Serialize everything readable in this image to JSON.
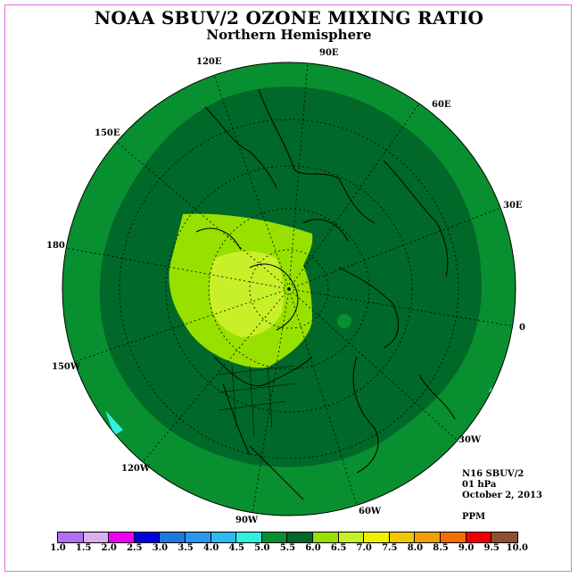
{
  "title": "NOAA SBUV/2 OZONE MIXING RATIO",
  "subtitle": "Northern Hemisphere",
  "longitude_labels": [
    "90E",
    "60E",
    "30E",
    "0",
    "30W",
    "60W",
    "90W",
    "120W",
    "150W",
    "180",
    "150E",
    "120E"
  ],
  "info": {
    "satellite": "N16 SBUV/2",
    "level": "01 hPa",
    "date": "October 2, 2013",
    "units": "PPM"
  },
  "colorbar": {
    "ticks": [
      "1.0",
      "1.5",
      "2.0",
      "2.5",
      "3.0",
      "3.5",
      "4.0",
      "4.5",
      "5.0",
      "5.5",
      "6.0",
      "6.5",
      "7.0",
      "7.5",
      "8.0",
      "8.5",
      "9.0",
      "9.5",
      "10.0"
    ],
    "colors": [
      "#b070f0",
      "#d8b0f0",
      "#f000f0",
      "#0000e0",
      "#1e78e0",
      "#2898f0",
      "#30b8f0",
      "#30f0e0",
      "#089030",
      "#006828",
      "#98e000",
      "#c8f028",
      "#f0f000",
      "#f0c800",
      "#f0a000",
      "#f07000",
      "#f00000",
      "#905030"
    ]
  },
  "map_fields": {
    "outer_level_ppm": "5.0-5.5",
    "middle_level_ppm": "5.5-6.0",
    "inner_level_ppm": "6.0-6.5",
    "core_level_ppm": "6.5-7.0"
  }
}
